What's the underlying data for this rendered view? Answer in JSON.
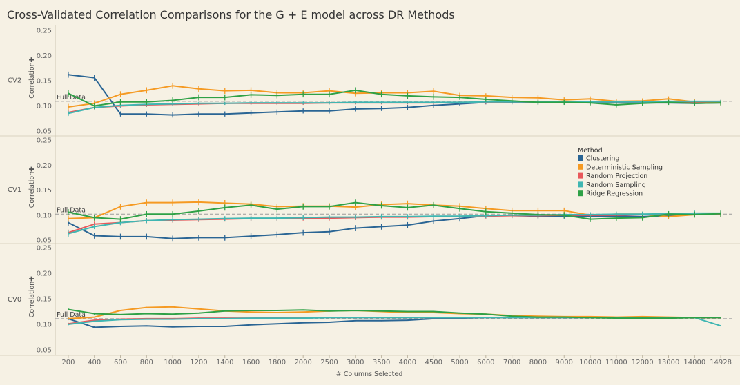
{
  "chart_data": {
    "type": "line",
    "title": "Cross-Validated Correlation Comparisons for the G + E model across DR Methods",
    "xlabel": "# Columns Selected",
    "ylabel": "Correlation",
    "ylim": [
      0.05,
      0.25
    ],
    "yticks": [
      "0.25",
      "0.20",
      "0.15",
      "0.10",
      "0.05"
    ],
    "full_data_label": "Full Data",
    "categories": [
      "200",
      "400",
      "600",
      "800",
      "1000",
      "1200",
      "1400",
      "1600",
      "1800",
      "2000",
      "2500",
      "3000",
      "3500",
      "4000",
      "4500",
      "5000",
      "6000",
      "7000",
      "8000",
      "9000",
      "10000",
      "11000",
      "12000",
      "13000",
      "14000",
      "14928"
    ],
    "legend": {
      "title": "Method",
      "position": "right",
      "entries": [
        "Clustering",
        "Deterministic Sampling",
        "Random Projection",
        "Random Sampling",
        "Ridge Regression"
      ]
    },
    "colors": {
      "Clustering": "#2a6594",
      "Deterministic Sampling": "#f59a23",
      "Random Projection": "#e8585b",
      "Random Sampling": "#3fb6b2",
      "Ridge Regression": "#2ea146"
    },
    "panels": [
      {
        "name": "CV2",
        "full_data": 0.109,
        "series": [
          {
            "name": "Clustering",
            "values": [
              0.162,
              0.156,
              0.084,
              0.084,
              0.082,
              0.084,
              0.084,
              0.086,
              0.088,
              0.09,
              0.09,
              0.094,
              0.095,
              0.097,
              0.101,
              0.104,
              0.107,
              0.107,
              0.107,
              0.107,
              0.107,
              0.106,
              0.106,
              0.106,
              0.105,
              0.106
            ],
            "errors": [
              0.006,
              0.006,
              0.005,
              0.005,
              0.005,
              0.005,
              0.005,
              0.005,
              0.005,
              0.005,
              0.005,
              0.005,
              0.005,
              0.005,
              0.005,
              0.004,
              0.004,
              0.004,
              0.004,
              0.004,
              0.004,
              0.004,
              0.004,
              0.004,
              0.004,
              0.004
            ]
          },
          {
            "name": "Deterministic Sampling",
            "values": [
              0.098,
              0.105,
              0.123,
              0.131,
              0.14,
              0.134,
              0.13,
              0.131,
              0.126,
              0.126,
              0.13,
              0.125,
              0.126,
              0.126,
              0.129,
              0.121,
              0.12,
              0.117,
              0.116,
              0.112,
              0.114,
              0.109,
              0.11,
              0.114,
              0.108,
              0.106
            ],
            "errors": [
              0.006,
              0.006,
              0.006,
              0.006,
              0.006,
              0.006,
              0.006,
              0.006,
              0.006,
              0.006,
              0.006,
              0.006,
              0.006,
              0.006,
              0.006,
              0.005,
              0.005,
              0.005,
              0.005,
              0.005,
              0.005,
              0.005,
              0.005,
              0.005,
              0.005,
              0.005
            ]
          },
          {
            "name": "Random Projection",
            "values": [
              0.087,
              0.097,
              0.1,
              0.102,
              0.103,
              0.104,
              0.105,
              0.105,
              0.105,
              0.105,
              0.106,
              0.106,
              0.106,
              0.106,
              0.106,
              0.107,
              0.107,
              0.108,
              0.108,
              0.108,
              0.108,
              0.108,
              0.108,
              0.108,
              0.108,
              0.109
            ],
            "errors": [
              0.005,
              0.004,
              0.004,
              0.004,
              0.003,
              0.003,
              0.003,
              0.003,
              0.003,
              0.003,
              0.003,
              0.003,
              0.003,
              0.003,
              0.003,
              0.003,
              0.003,
              0.003,
              0.003,
              0.003,
              0.003,
              0.003,
              0.003,
              0.003,
              0.003,
              0.003
            ]
          },
          {
            "name": "Random Sampling",
            "values": [
              0.085,
              0.097,
              0.101,
              0.103,
              0.104,
              0.105,
              0.105,
              0.106,
              0.106,
              0.106,
              0.106,
              0.107,
              0.107,
              0.107,
              0.107,
              0.107,
              0.108,
              0.108,
              0.108,
              0.108,
              0.108,
              0.108,
              0.108,
              0.109,
              0.109,
              0.109
            ],
            "errors": [
              0.005,
              0.004,
              0.004,
              0.004,
              0.003,
              0.003,
              0.003,
              0.003,
              0.003,
              0.003,
              0.003,
              0.003,
              0.003,
              0.003,
              0.003,
              0.003,
              0.003,
              0.003,
              0.003,
              0.003,
              0.003,
              0.003,
              0.003,
              0.003,
              0.003,
              0.003
            ]
          },
          {
            "name": "Ridge Regression",
            "values": [
              0.125,
              0.1,
              0.108,
              0.108,
              0.111,
              0.117,
              0.117,
              0.122,
              0.121,
              0.123,
              0.123,
              0.131,
              0.123,
              0.12,
              0.118,
              0.117,
              0.113,
              0.11,
              0.107,
              0.107,
              0.106,
              0.102,
              0.105,
              0.107,
              0.105,
              0.106
            ],
            "errors": [
              0.007,
              0.006,
              0.006,
              0.006,
              0.006,
              0.006,
              0.006,
              0.006,
              0.006,
              0.006,
              0.006,
              0.006,
              0.006,
              0.006,
              0.006,
              0.005,
              0.005,
              0.005,
              0.005,
              0.005,
              0.005,
              0.005,
              0.005,
              0.005,
              0.005,
              0.005
            ]
          }
        ]
      },
      {
        "name": "CV1",
        "full_data": 0.102,
        "series": [
          {
            "name": "Clustering",
            "values": [
              0.085,
              0.059,
              0.057,
              0.057,
              0.053,
              0.055,
              0.055,
              0.058,
              0.061,
              0.065,
              0.067,
              0.074,
              0.077,
              0.08,
              0.088,
              0.093,
              0.099,
              0.099,
              0.098,
              0.098,
              0.098,
              0.098,
              0.097,
              0.099,
              0.101,
              0.102
            ],
            "errors": [
              0.006,
              0.006,
              0.006,
              0.006,
              0.006,
              0.006,
              0.006,
              0.006,
              0.006,
              0.006,
              0.006,
              0.006,
              0.006,
              0.006,
              0.006,
              0.006,
              0.005,
              0.005,
              0.005,
              0.005,
              0.005,
              0.005,
              0.005,
              0.005,
              0.005,
              0.005
            ]
          },
          {
            "name": "Deterministic Sampling",
            "values": [
              0.093,
              0.095,
              0.117,
              0.125,
              0.125,
              0.126,
              0.124,
              0.122,
              0.117,
              0.118,
              0.118,
              0.116,
              0.121,
              0.123,
              0.12,
              0.118,
              0.113,
              0.109,
              0.109,
              0.109,
              0.1,
              0.102,
              0.102,
              0.097,
              0.101,
              0.102
            ],
            "errors": [
              0.006,
              0.006,
              0.006,
              0.006,
              0.006,
              0.006,
              0.006,
              0.006,
              0.006,
              0.006,
              0.006,
              0.006,
              0.006,
              0.006,
              0.006,
              0.006,
              0.006,
              0.006,
              0.006,
              0.006,
              0.005,
              0.005,
              0.005,
              0.005,
              0.005,
              0.005
            ]
          },
          {
            "name": "Random Projection",
            "values": [
              0.065,
              0.082,
              0.085,
              0.089,
              0.09,
              0.091,
              0.092,
              0.093,
              0.093,
              0.094,
              0.094,
              0.095,
              0.096,
              0.096,
              0.097,
              0.097,
              0.098,
              0.099,
              0.099,
              0.1,
              0.1,
              0.1,
              0.101,
              0.101,
              0.101,
              0.101
            ],
            "errors": [
              0.006,
              0.005,
              0.005,
              0.005,
              0.005,
              0.005,
              0.005,
              0.005,
              0.005,
              0.005,
              0.005,
              0.005,
              0.005,
              0.005,
              0.005,
              0.005,
              0.005,
              0.005,
              0.005,
              0.005,
              0.005,
              0.005,
              0.005,
              0.005,
              0.005,
              0.005
            ]
          },
          {
            "name": "Random Sampling",
            "values": [
              0.063,
              0.077,
              0.085,
              0.089,
              0.091,
              0.092,
              0.093,
              0.094,
              0.094,
              0.095,
              0.096,
              0.096,
              0.097,
              0.097,
              0.098,
              0.098,
              0.099,
              0.1,
              0.1,
              0.101,
              0.101,
              0.102,
              0.102,
              0.103,
              0.104,
              0.104
            ],
            "errors": [
              0.006,
              0.005,
              0.005,
              0.005,
              0.005,
              0.005,
              0.005,
              0.005,
              0.005,
              0.005,
              0.005,
              0.005,
              0.005,
              0.005,
              0.005,
              0.005,
              0.005,
              0.005,
              0.005,
              0.005,
              0.005,
              0.005,
              0.005,
              0.005,
              0.005,
              0.005
            ]
          },
          {
            "name": "Ridge Regression",
            "values": [
              0.106,
              0.095,
              0.092,
              0.102,
              0.102,
              0.108,
              0.115,
              0.12,
              0.112,
              0.117,
              0.117,
              0.125,
              0.119,
              0.115,
              0.12,
              0.113,
              0.107,
              0.104,
              0.101,
              0.1,
              0.092,
              0.094,
              0.095,
              0.102,
              0.101,
              0.103
            ],
            "errors": [
              0.006,
              0.006,
              0.006,
              0.006,
              0.006,
              0.006,
              0.006,
              0.006,
              0.006,
              0.006,
              0.006,
              0.006,
              0.006,
              0.006,
              0.006,
              0.006,
              0.006,
              0.006,
              0.006,
              0.006,
              0.006,
              0.006,
              0.006,
              0.006,
              0.006,
              0.006
            ]
          }
        ]
      },
      {
        "name": "CV0",
        "full_data": 0.111,
        "series": [
          {
            "name": "Clustering",
            "values": [
              0.111,
              0.094,
              0.096,
              0.097,
              0.095,
              0.096,
              0.096,
              0.099,
              0.101,
              0.103,
              0.104,
              0.107,
              0.107,
              0.108,
              0.111,
              0.112,
              0.113,
              0.113,
              0.113,
              0.113,
              0.113,
              0.113,
              0.113,
              0.113,
              0.113,
              0.113
            ],
            "errors": [
              0.003,
              0.002,
              0.001,
              0.001,
              0.001,
              0.001,
              0.001,
              0.001,
              0.001,
              0.001,
              0.001,
              0.001,
              0.001,
              0.001,
              0.001,
              0.001,
              0.001,
              0.001,
              0.001,
              0.001,
              0.001,
              0.001,
              0.001,
              0.001,
              0.001,
              0.001
            ]
          },
          {
            "name": "Deterministic Sampling",
            "values": [
              0.111,
              0.114,
              0.127,
              0.133,
              0.134,
              0.13,
              0.126,
              0.124,
              0.123,
              0.124,
              0.126,
              0.127,
              0.125,
              0.123,
              0.123,
              0.121,
              0.12,
              0.117,
              0.116,
              0.115,
              0.115,
              0.114,
              0.115,
              0.114,
              0.113,
              0.113
            ],
            "errors": [
              0.002,
              0.001,
              0.001,
              0.001,
              0.001,
              0.001,
              0.001,
              0.001,
              0.001,
              0.001,
              0.001,
              0.001,
              0.001,
              0.001,
              0.001,
              0.001,
              0.001,
              0.001,
              0.001,
              0.001,
              0.001,
              0.001,
              0.001,
              0.001,
              0.001,
              0.001
            ]
          },
          {
            "name": "Random Projection",
            "values": [
              0.101,
              0.108,
              0.11,
              0.111,
              0.111,
              0.112,
              0.112,
              0.112,
              0.113,
              0.113,
              0.113,
              0.113,
              0.113,
              0.113,
              0.113,
              0.113,
              0.113,
              0.113,
              0.113,
              0.113,
              0.113,
              0.113,
              0.113,
              0.113,
              0.113,
              0.113
            ],
            "errors": [
              0.002,
              0.001,
              0.001,
              0.001,
              0.001,
              0.001,
              0.001,
              0.001,
              0.001,
              0.001,
              0.001,
              0.001,
              0.001,
              0.001,
              0.001,
              0.001,
              0.001,
              0.001,
              0.001,
              0.001,
              0.001,
              0.001,
              0.001,
              0.001,
              0.001,
              0.001
            ]
          },
          {
            "name": "Random Sampling",
            "values": [
              0.1,
              0.106,
              0.109,
              0.11,
              0.11,
              0.111,
              0.111,
              0.112,
              0.112,
              0.112,
              0.113,
              0.113,
              0.113,
              0.113,
              0.113,
              0.113,
              0.113,
              0.113,
              0.113,
              0.113,
              0.113,
              0.113,
              0.113,
              0.113,
              0.113,
              0.097
            ],
            "errors": [
              0.002,
              0.001,
              0.001,
              0.001,
              0.001,
              0.001,
              0.001,
              0.001,
              0.001,
              0.001,
              0.001,
              0.001,
              0.001,
              0.001,
              0.001,
              0.001,
              0.001,
              0.001,
              0.001,
              0.001,
              0.001,
              0.001,
              0.001,
              0.001,
              0.001,
              0.001
            ]
          },
          {
            "name": "Ridge Regression",
            "values": [
              0.129,
              0.121,
              0.119,
              0.121,
              0.12,
              0.122,
              0.126,
              0.127,
              0.127,
              0.128,
              0.126,
              0.127,
              0.126,
              0.125,
              0.125,
              0.122,
              0.12,
              0.116,
              0.114,
              0.114,
              0.113,
              0.112,
              0.112,
              0.112,
              0.113,
              0.113
            ],
            "errors": [
              0.002,
              0.002,
              0.001,
              0.001,
              0.001,
              0.001,
              0.001,
              0.001,
              0.001,
              0.001,
              0.001,
              0.001,
              0.001,
              0.001,
              0.001,
              0.001,
              0.001,
              0.001,
              0.001,
              0.001,
              0.001,
              0.001,
              0.001,
              0.001,
              0.001,
              0.001
            ]
          }
        ]
      }
    ]
  }
}
